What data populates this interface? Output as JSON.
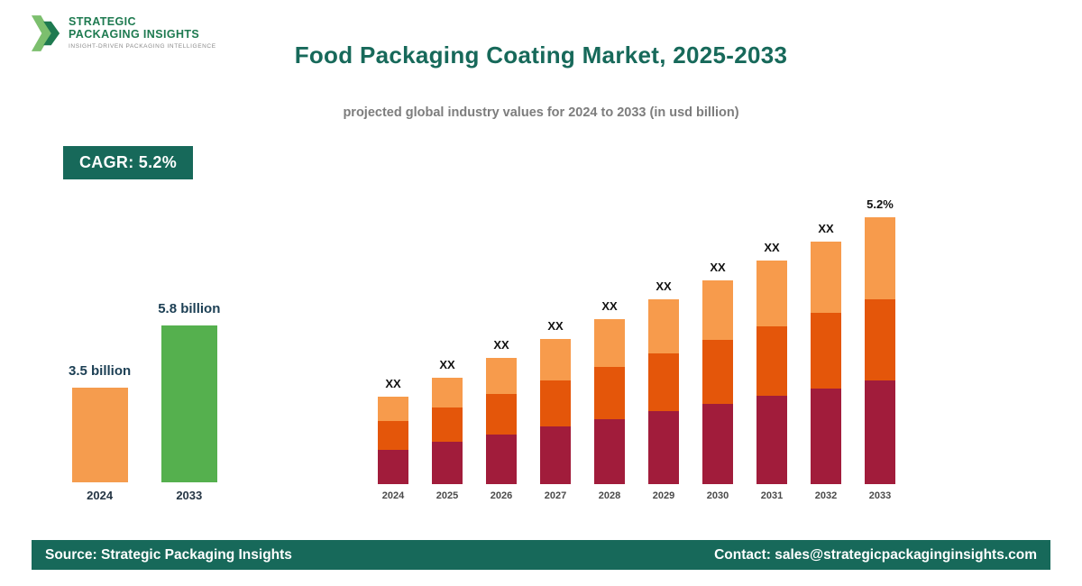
{
  "logo": {
    "line1": "STRATEGIC",
    "line2": "PACKAGING INSIGHTS",
    "tagline": "INSIGHT-DRIVEN PACKAGING INTELLIGENCE"
  },
  "header": {
    "title": "Food Packaging Coating Market, 2025-2033",
    "subtitle": "projected global industry values for 2024 to 2033 (in usd billion)"
  },
  "cagr_badge_label": "CAGR: 5.2%",
  "footer": {
    "source": "Source: Strategic Packaging Insights",
    "contact": "Contact: sales@strategicpackaginginsights.com"
  },
  "colors": {
    "accent_dark_green": "#17695a",
    "logo_green": "#1e7a50",
    "logo_light_green": "#7cbf6e",
    "summary_orange": "#f59c4e",
    "summary_green": "#55b04e",
    "stack_bottom_crimson": "#a11c3b",
    "stack_middle_orange_red": "#e4560a",
    "stack_top_light_orange": "#f79b4c"
  },
  "chart_data": [
    {
      "name": "summary-comparison",
      "type": "bar",
      "title": "",
      "categories": [
        "2024",
        "2033"
      ],
      "values": [
        3.5,
        5.8
      ],
      "value_labels": [
        "3.5 billion",
        "5.8 billion"
      ],
      "bar_colors": [
        "#f59c4e",
        "#55b04e"
      ],
      "unit": "usd billion",
      "axes": "none (value labels above bars)"
    },
    {
      "name": "projected-values-stacked",
      "type": "bar",
      "stacked": true,
      "categories": [
        "2024",
        "2025",
        "2026",
        "2027",
        "2028",
        "2029",
        "2030",
        "2031",
        "2032",
        "2033"
      ],
      "series": [
        {
          "name": "segment-bottom",
          "color": "#a11c3b",
          "values": [
            38,
            47,
            55,
            64,
            72,
            81,
            89,
            98,
            106,
            115
          ]
        },
        {
          "name": "segment-middle",
          "color": "#e4560a",
          "values": [
            32,
            38,
            45,
            51,
            58,
            64,
            71,
            77,
            84,
            90
          ]
        },
        {
          "name": "segment-top",
          "color": "#f79b4c",
          "values": [
            27,
            33,
            40,
            46,
            53,
            60,
            66,
            73,
            79,
            91
          ]
        }
      ],
      "bar_labels": [
        "XX",
        "XX",
        "XX",
        "XX",
        "XX",
        "XX",
        "XX",
        "XX",
        "XX",
        "5.2%"
      ],
      "axes": "none",
      "note": "numeric values not shown in image (labels are XX); series values estimated from relative bar heights"
    }
  ]
}
